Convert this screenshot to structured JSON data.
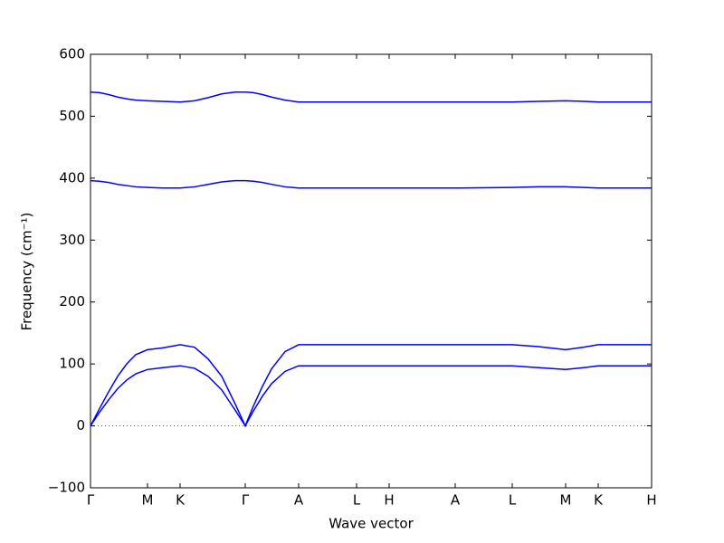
{
  "chart_data": {
    "type": "line",
    "xlabel": "Wave vector",
    "ylabel": "Frequency (cm⁻¹)",
    "x": [
      0,
      10,
      20,
      30,
      40,
      50,
      63,
      80,
      99,
      115,
      130,
      145,
      160,
      171,
      180,
      190,
      200,
      215,
      230,
      294,
      330,
      403,
      466,
      495,
      525,
      545,
      561,
      620
    ],
    "series": [
      {
        "color": "#0000ff",
        "values": [
          0,
          22,
          42,
          60,
          74,
          84,
          91,
          94,
          97,
          93,
          80,
          58,
          25,
          0,
          24,
          48,
          68,
          88,
          97,
          97,
          97,
          97,
          97,
          94,
          91,
          94,
          97,
          97
        ]
      },
      {
        "color": "#0000ff",
        "values": [
          0,
          28,
          55,
          80,
          100,
          115,
          123,
          126,
          131,
          127,
          108,
          80,
          35,
          0,
          32,
          64,
          92,
          120,
          131,
          131,
          131,
          131,
          131,
          128,
          123,
          127,
          131,
          131
        ]
      },
      {
        "color": "#0000ff",
        "values": [
          396,
          395,
          393,
          390,
          388,
          386,
          385,
          384,
          384,
          386,
          390,
          394,
          396,
          396,
          395,
          393,
          390,
          386,
          384,
          384,
          384,
          384,
          385,
          386,
          386,
          385,
          384,
          384
        ]
      },
      {
        "color": "#0000ff",
        "values": [
          539,
          538,
          535,
          531,
          528,
          526,
          525,
          524,
          523,
          525,
          530,
          536,
          539,
          539,
          538,
          535,
          531,
          526,
          523,
          523,
          523,
          523,
          523,
          524,
          525,
          524,
          523,
          523
        ]
      }
    ],
    "xlim": [
      0,
      620
    ],
    "xticks": [
      {
        "value": 0,
        "label": "Γ"
      },
      {
        "value": 63,
        "label": "M"
      },
      {
        "value": 99,
        "label": "K"
      },
      {
        "value": 171,
        "label": "Γ"
      },
      {
        "value": 230,
        "label": "A"
      },
      {
        "value": 294,
        "label": "L"
      },
      {
        "value": 330,
        "label": "H"
      },
      {
        "value": 403,
        "label": "A"
      },
      {
        "value": 466,
        "label": "L"
      },
      {
        "value": 525,
        "label": "M"
      },
      {
        "value": 561,
        "label": "K"
      },
      {
        "value": 620,
        "label": "H"
      }
    ],
    "ylim": [
      -100,
      600
    ],
    "yticks": [
      {
        "value": -100,
        "label": "−100"
      },
      0,
      100,
      200,
      300,
      400,
      500,
      600
    ],
    "zero_line": true
  }
}
